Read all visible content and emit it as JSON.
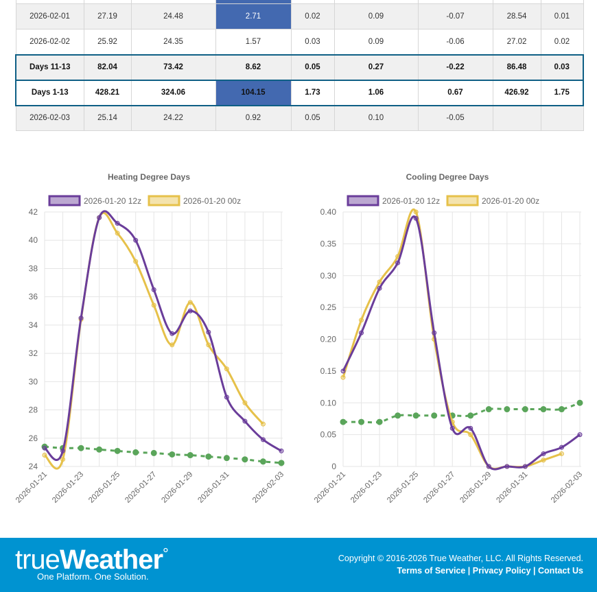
{
  "table": {
    "rows": [
      {
        "cells": [
          "",
          "",
          "",
          "",
          "",
          "",
          "",
          "",
          ""
        ],
        "style": "white",
        "hl": 3
      },
      {
        "cells": [
          "2026-02-01",
          "27.19",
          "24.48",
          "2.71",
          "0.02",
          "0.09",
          "-0.07",
          "28.54",
          "0.01"
        ],
        "style": "grey",
        "hl": 3
      },
      {
        "cells": [
          "2026-02-02",
          "25.92",
          "24.35",
          "1.57",
          "0.03",
          "0.09",
          "-0.06",
          "27.02",
          "0.02"
        ],
        "style": "white",
        "hl": -1
      },
      {
        "cells": [
          "Days 11-13",
          "82.04",
          "73.42",
          "8.62",
          "0.05",
          "0.27",
          "-0.22",
          "86.48",
          "0.03"
        ],
        "style": "grey sum bold",
        "hl": -1
      },
      {
        "cells": [
          "Days 1-13",
          "428.21",
          "324.06",
          "104.15",
          "1.73",
          "1.06",
          "0.67",
          "426.92",
          "1.75"
        ],
        "style": "white sum bold",
        "hl": 3
      },
      {
        "cells": [
          "2026-02-03",
          "25.14",
          "24.22",
          "0.92",
          "0.05",
          "0.10",
          "-0.05",
          "",
          ""
        ],
        "style": "grey",
        "hl": -1
      }
    ]
  },
  "chart_data": [
    {
      "type": "line",
      "title": "Heating Degree Days",
      "ylim": [
        24,
        42
      ],
      "yticks": [
        "24",
        "26",
        "28",
        "30",
        "32",
        "34",
        "36",
        "38",
        "40",
        "42"
      ],
      "x": [
        "2026-01-21",
        "2026-01-22",
        "2026-01-23",
        "2026-01-24",
        "2026-01-25",
        "2026-01-26",
        "2026-01-27",
        "2026-01-28",
        "2026-01-29",
        "2026-01-30",
        "2026-01-31",
        "2026-02-01",
        "2026-02-02",
        "2026-02-03"
      ],
      "xticks": [
        "2026-01-21",
        "2026-01-23",
        "2026-01-25",
        "2026-01-27",
        "2026-01-29",
        "2026-01-31",
        "2026-02-03"
      ],
      "series": [
        {
          "name": "2026-01-20 12z",
          "color": "#6a3d9a",
          "values": [
            25.3,
            25.1,
            34.5,
            41.6,
            41.2,
            40.0,
            36.5,
            33.4,
            35.0,
            33.5,
            28.9,
            27.2,
            25.9,
            25.1
          ]
        },
        {
          "name": "2026-01-20 00z",
          "color": "#e6c14a",
          "values": [
            24.8,
            24.5,
            34.4,
            41.6,
            40.5,
            38.5,
            35.4,
            32.6,
            35.6,
            32.6,
            30.9,
            28.5,
            27.0,
            null
          ]
        },
        {
          "name": "Normal",
          "color": "#5aa55a",
          "dashed": true,
          "values": [
            25.4,
            25.3,
            25.3,
            25.2,
            25.1,
            25.0,
            24.95,
            24.85,
            24.8,
            24.7,
            24.6,
            24.5,
            24.35,
            24.25
          ]
        }
      ]
    },
    {
      "type": "line",
      "title": "Cooling Degree Days",
      "ylim": [
        0,
        0.4
      ],
      "yticks": [
        "0",
        "0.05",
        "0.10",
        "0.15",
        "0.20",
        "0.25",
        "0.30",
        "0.35",
        "0.40"
      ],
      "x": [
        "2026-01-21",
        "2026-01-22",
        "2026-01-23",
        "2026-01-24",
        "2026-01-25",
        "2026-01-26",
        "2026-01-27",
        "2026-01-28",
        "2026-01-29",
        "2026-01-30",
        "2026-01-31",
        "2026-02-01",
        "2026-02-02",
        "2026-02-03"
      ],
      "xticks": [
        "2026-01-21",
        "2026-01-23",
        "2026-01-25",
        "2026-01-27",
        "2026-01-29",
        "2026-01-31",
        "2026-02-03"
      ],
      "series": [
        {
          "name": "2026-01-20 12z",
          "color": "#6a3d9a",
          "values": [
            0.15,
            0.21,
            0.28,
            0.32,
            0.39,
            0.21,
            0.06,
            0.06,
            0,
            0,
            0,
            0.02,
            0.03,
            0.05
          ]
        },
        {
          "name": "2026-01-20 00z",
          "color": "#e6c14a",
          "values": [
            0.14,
            0.23,
            0.29,
            0.33,
            0.4,
            0.2,
            0.07,
            0.05,
            0,
            0,
            0,
            0.01,
            0.02,
            null
          ]
        },
        {
          "name": "Normal",
          "color": "#5aa55a",
          "dashed": true,
          "values": [
            0.07,
            0.07,
            0.07,
            0.08,
            0.08,
            0.08,
            0.08,
            0.08,
            0.09,
            0.09,
            0.09,
            0.09,
            0.09,
            0.1
          ]
        }
      ]
    }
  ],
  "footer": {
    "logo_light": "true",
    "logo_bold": "Weather",
    "tagline": "One Platform. One Solution.",
    "copyright": "Copyright © 2016-2026 True Weather, LLC. All Rights Reserved.",
    "links": [
      "Terms of Service",
      "Privacy Policy",
      "Contact Us"
    ]
  }
}
